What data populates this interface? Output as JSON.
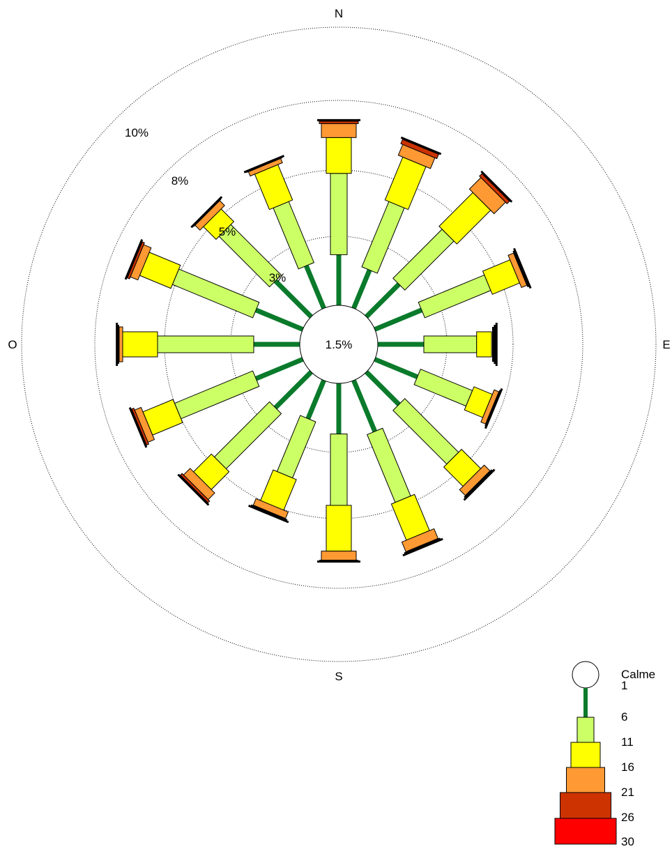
{
  "chart_data": {
    "type": "wind-rose",
    "directions": [
      "N",
      "NNE",
      "NE",
      "ENE",
      "E",
      "ESE",
      "SE",
      "SSE",
      "S",
      "SSW",
      "SW",
      "WSW",
      "W",
      "WNW",
      "NW",
      "NNW"
    ],
    "cardinal_labels": {
      "north": "N",
      "east": "E",
      "south": "S",
      "west": "O"
    },
    "calm": {
      "label": "1.5%",
      "value": 1.5
    },
    "rings": [
      {
        "value": 3,
        "label": "3%"
      },
      {
        "value": 5,
        "label": "5%"
      },
      {
        "value": 8,
        "label": "8%"
      },
      {
        "value": 10,
        "label": "10%"
      }
    ],
    "speed_classes": [
      {
        "range": "1-6",
        "color": "#0a7a2b"
      },
      {
        "range": "6-11",
        "color": "#ccff66"
      },
      {
        "range": "11-16",
        "color": "#ffff00"
      },
      {
        "range": "16-21",
        "color": "#ff9933"
      },
      {
        "range": "21-26",
        "color": "#cc3300"
      },
      {
        "range": "26-30",
        "color": "#ff0000"
      }
    ],
    "cumulative_percent": [
      [
        2.6,
        4.9,
        6.4,
        7.0,
        7.1,
        7.15
      ],
      [
        2.4,
        4.3,
        6.0,
        6.5,
        6.7,
        6.75
      ],
      [
        2.5,
        4.4,
        6.2,
        6.9,
        7.05,
        7.1
      ],
      [
        2.6,
        4.6,
        5.7,
        5.95,
        5.99,
        6.05
      ],
      [
        2.5,
        3.9,
        4.35,
        4.4,
        4.45,
        4.5
      ],
      [
        2.5,
        4.0,
        4.6,
        4.75,
        4.78,
        4.8
      ],
      [
        2.5,
        4.6,
        5.6,
        5.95,
        5.99,
        6.05
      ],
      [
        2.7,
        4.8,
        6.4,
        6.85,
        6.9,
        6.95
      ],
      [
        2.6,
        4.6,
        6.4,
        6.8,
        6.82,
        6.85
      ],
      [
        2.4,
        4.0,
        5.0,
        5.3,
        5.35,
        5.4
      ],
      [
        2.6,
        4.8,
        5.8,
        6.2,
        6.3,
        6.35
      ],
      [
        2.6,
        5.0,
        6.4,
        6.7,
        6.8,
        6.85
      ],
      [
        2.5,
        5.3,
        6.8,
        6.95,
        7.0,
        7.05
      ],
      [
        2.6,
        5.1,
        6.55,
        6.9,
        7.0,
        7.05
      ],
      [
        2.6,
        4.6,
        5.2,
        5.5,
        5.53,
        5.55
      ],
      [
        2.5,
        4.3,
        5.65,
        5.85,
        5.88,
        5.9
      ]
    ],
    "legend": {
      "title": "Calme",
      "tick_labels": [
        "1",
        "6",
        "11",
        "16",
        "21",
        "26",
        "30"
      ]
    }
  }
}
